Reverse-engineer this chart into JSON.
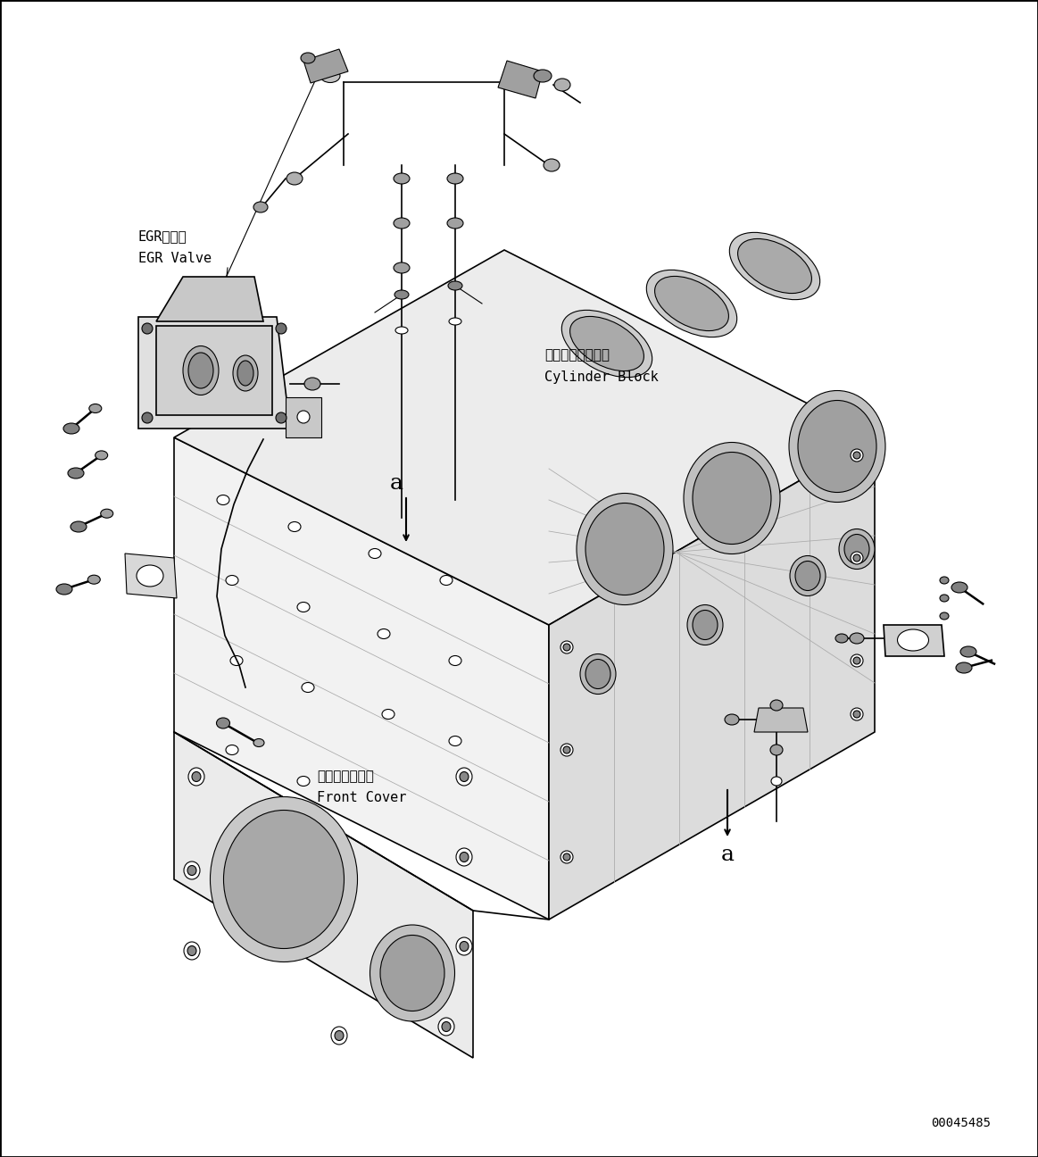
{
  "figure_width": 11.63,
  "figure_height": 12.96,
  "dpi": 100,
  "bg_color": "#ffffff",
  "border_color": "#000000",
  "line_color": "#000000",
  "part_number": "00045485",
  "label_egr_jp": "EGRバルブ",
  "label_egr_en": "EGR Valve",
  "label_cylinder_jp": "シリンダブロック",
  "label_cylinder_en": "Cylinder Block",
  "label_front_jp": "フロントカバー",
  "label_front_en": "Front Cover",
  "label_a1": "a",
  "label_a2": "a",
  "font_size_label": 11,
  "font_size_small": 9,
  "font_size_part": 10,
  "font_size_a": 18
}
